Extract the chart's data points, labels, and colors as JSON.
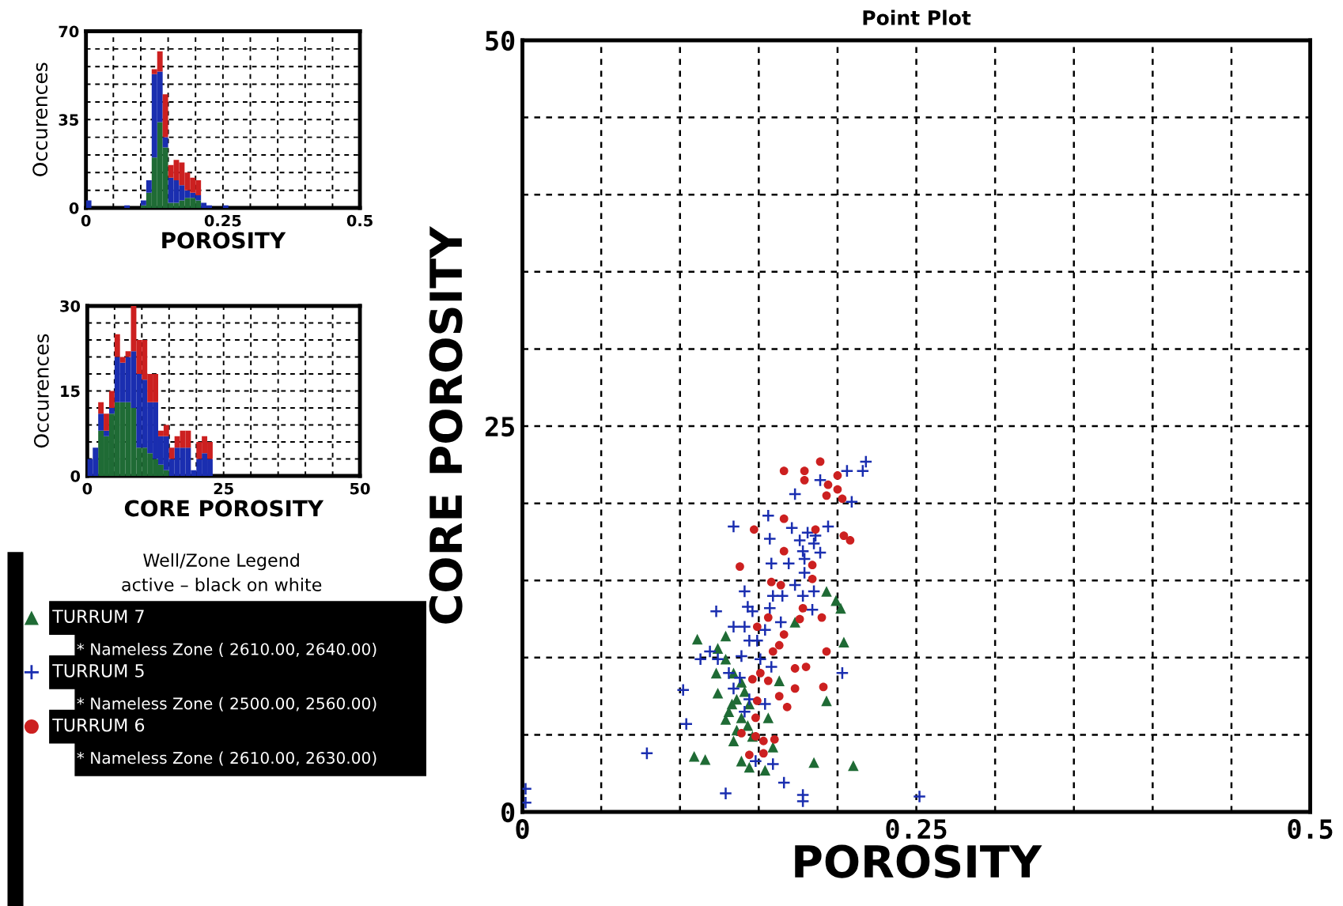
{
  "chart_data": [
    {
      "type": "bar",
      "xlabel": "POROSITY",
      "ylabel": "Occurences",
      "stacked": true,
      "grid": true,
      "x": [
        0.005,
        0.015,
        0.025,
        0.035,
        0.045,
        0.055,
        0.065,
        0.075,
        0.085,
        0.095,
        0.105,
        0.115,
        0.125,
        0.135,
        0.145,
        0.155,
        0.165,
        0.175,
        0.185,
        0.195,
        0.205,
        0.215,
        0.225,
        0.235,
        0.245,
        0.255
      ],
      "series": [
        {
          "color": "#1f6b35",
          "values": [
            0,
            0,
            0,
            0,
            0,
            0,
            0,
            0,
            0,
            0,
            1,
            6,
            20,
            34,
            24,
            2,
            2,
            3,
            4,
            4,
            3,
            0,
            0,
            0,
            0,
            0
          ]
        },
        {
          "color": "#1a2eb0",
          "values": [
            3,
            0,
            0,
            0,
            0,
            0,
            0,
            1,
            0,
            0,
            2,
            5,
            33,
            20,
            4,
            10,
            9,
            6,
            3,
            2,
            2,
            2,
            1,
            0,
            0,
            1
          ]
        },
        {
          "color": "#cc2020",
          "values": [
            0,
            0,
            0,
            0,
            0,
            0,
            0,
            0,
            0,
            0,
            0,
            0,
            2,
            8,
            17,
            5,
            8,
            9,
            7,
            6,
            6,
            0,
            0,
            0,
            0,
            0
          ]
        }
      ],
      "xlim": [
        0,
        0.5
      ],
      "ylim": [
        0,
        70
      ],
      "xticks": [
        0,
        {
          "value": 0.05,
          "label": null
        },
        {
          "value": 0.1,
          "label": null
        },
        {
          "value": 0.15,
          "label": null
        },
        {
          "value": 0.2,
          "label": null
        },
        0.25,
        {
          "value": 0.3,
          "label": null
        },
        {
          "value": 0.35,
          "label": null
        },
        {
          "value": 0.4,
          "label": null
        },
        {
          "value": 0.45,
          "label": null
        },
        0.5
      ],
      "yticks": [
        0,
        {
          "value": 7,
          "label": null
        },
        {
          "value": 14,
          "label": null
        },
        {
          "value": 21,
          "label": null
        },
        {
          "value": 28,
          "label": null
        },
        35,
        {
          "value": 42,
          "label": null
        },
        {
          "value": 49,
          "label": null
        },
        {
          "value": 56,
          "label": null
        },
        {
          "value": 63,
          "label": null
        },
        70
      ]
    },
    {
      "type": "bar",
      "xlabel": "CORE POROSITY",
      "ylabel": "Occurences",
      "stacked": true,
      "grid": true,
      "x": [
        0.5,
        1.5,
        2.5,
        3.5,
        4.5,
        5.5,
        6.5,
        7.5,
        8.5,
        9.5,
        10.5,
        11.5,
        12.5,
        13.5,
        14.5,
        15.5,
        16.5,
        17.5,
        18.5,
        19.5,
        20.5,
        21.5,
        22.5
      ],
      "series": [
        {
          "color": "#1f6b35",
          "values": [
            0,
            0,
            8,
            7,
            11,
            13,
            13,
            13,
            12,
            5,
            5,
            4,
            3,
            2,
            1,
            0,
            0,
            0,
            0,
            0,
            0,
            0,
            0
          ]
        },
        {
          "color": "#1a2eb0",
          "values": [
            3,
            5,
            3,
            1,
            1,
            8,
            7,
            8,
            10,
            13,
            12,
            9,
            10,
            5,
            6,
            3,
            5,
            5,
            5,
            1,
            3,
            4,
            3
          ]
        },
        {
          "color": "#cc2020",
          "values": [
            0,
            0,
            2,
            3,
            3,
            4,
            1,
            1,
            8,
            6,
            7,
            5,
            5,
            1,
            2,
            2,
            2,
            3,
            3,
            0,
            3,
            3,
            3
          ]
        }
      ],
      "xlim": [
        0,
        50
      ],
      "ylim": [
        0,
        30
      ],
      "xticks": [
        0,
        {
          "value": 5,
          "label": null
        },
        {
          "value": 10,
          "label": null
        },
        {
          "value": 15,
          "label": null
        },
        {
          "value": 20,
          "label": null
        },
        25,
        {
          "value": 30,
          "label": null
        },
        {
          "value": 35,
          "label": null
        },
        {
          "value": 40,
          "label": null
        },
        {
          "value": 45,
          "label": null
        },
        50
      ],
      "yticks": [
        0,
        {
          "value": 3,
          "label": null
        },
        {
          "value": 6,
          "label": null
        },
        {
          "value": 9,
          "label": null
        },
        {
          "value": 12,
          "label": null
        },
        15,
        {
          "value": 18,
          "label": null
        },
        {
          "value": 21,
          "label": null
        },
        {
          "value": 24,
          "label": null
        },
        {
          "value": 27,
          "label": null
        },
        30
      ]
    },
    {
      "type": "scatter",
      "title": "Point Plot",
      "xlabel": "POROSITY",
      "ylabel": "CORE POROSITY",
      "grid": true,
      "legend": "left",
      "legend_title": "Well/Zone Legend",
      "annotations": [
        "active – black on white",
        "* Nameless Zone ( 2610.00, 2640.00)",
        "* Nameless Zone ( 2500.00, 2560.00)",
        "* Nameless Zone ( 2610.00, 2630.00)"
      ],
      "series": [
        {
          "name": "TURRUM 7",
          "color": "#1f6b35",
          "marker": "triangle",
          "x": [
            0.193,
            0.199,
            0.202,
            0.173,
            0.204,
            0.111,
            0.129,
            0.124,
            0.123,
            0.129,
            0.124,
            0.193,
            0.163,
            0.134,
            0.139,
            0.136,
            0.131,
            0.129,
            0.139,
            0.144,
            0.136,
            0.134,
            0.143,
            0.156,
            0.109,
            0.116,
            0.139,
            0.144,
            0.154,
            0.159,
            0.185,
            0.21,
            0.146,
            0.133,
            0.141
          ],
          "values": [
            14.3,
            13.7,
            13.2,
            12.3,
            11.0,
            11.2,
            11.4,
            10.6,
            9.0,
            9.9,
            7.7,
            7.2,
            8.5,
            9.0,
            8.4,
            7.3,
            6.5,
            6.0,
            6.1,
            7.0,
            5.3,
            4.6,
            5.6,
            6.1,
            3.6,
            3.4,
            3.3,
            2.9,
            2.7,
            4.2,
            3.2,
            3.0,
            4.9,
            7.0,
            7.8
          ]
        },
        {
          "name": "TURRUM 5",
          "color": "#1a2eb0",
          "marker": "cross",
          "x": [
            0.218,
            0.216,
            0.206,
            0.189,
            0.173,
            0.209,
            0.156,
            0.134,
            0.171,
            0.181,
            0.194,
            0.186,
            0.157,
            0.176,
            0.185,
            0.178,
            0.189,
            0.179,
            0.158,
            0.169,
            0.179,
            0.185,
            0.141,
            0.173,
            0.159,
            0.165,
            0.178,
            0.123,
            0.143,
            0.146,
            0.157,
            0.184,
            0.164,
            0.134,
            0.141,
            0.154,
            0.144,
            0.149,
            0.119,
            0.113,
            0.124,
            0.139,
            0.151,
            0.158,
            0.131,
            0.138,
            0.134,
            0.102,
            0.144,
            0.154,
            0.141,
            0.104,
            0.148,
            0.159,
            0.166,
            0.129,
            0.178,
            0.178,
            0.203,
            0.079,
            0.252,
            0.002,
            0.002
          ],
          "values": [
            22.7,
            22.1,
            22.1,
            21.5,
            20.6,
            20.1,
            19.2,
            18.5,
            18.4,
            18.1,
            18.5,
            17.9,
            17.7,
            17.6,
            17.4,
            16.9,
            16.8,
            16.4,
            16.1,
            16.1,
            15.5,
            14.3,
            14.3,
            14.7,
            14.0,
            14.0,
            14.0,
            13.0,
            13.3,
            13.0,
            13.2,
            13.1,
            12.3,
            12.0,
            12.0,
            11.8,
            11.1,
            11.1,
            10.4,
            9.9,
            9.9,
            10.1,
            9.9,
            9.4,
            9.0,
            8.7,
            8.0,
            7.9,
            7.3,
            7.0,
            6.5,
            5.7,
            3.3,
            3.1,
            1.9,
            1.2,
            1.1,
            0.7,
            9.0,
            3.8,
            1.0,
            1.5,
            0.6
          ]
        },
        {
          "name": "TURRUM 6",
          "color": "#cc2020",
          "marker": "circle",
          "x": [
            0.189,
            0.166,
            0.179,
            0.179,
            0.2,
            0.194,
            0.2,
            0.193,
            0.203,
            0.166,
            0.147,
            0.186,
            0.204,
            0.208,
            0.166,
            0.138,
            0.184,
            0.184,
            0.158,
            0.164,
            0.178,
            0.176,
            0.156,
            0.149,
            0.19,
            0.166,
            0.163,
            0.159,
            0.193,
            0.173,
            0.18,
            0.151,
            0.146,
            0.156,
            0.173,
            0.191,
            0.163,
            0.168,
            0.149,
            0.148,
            0.139,
            0.148,
            0.153,
            0.16,
            0.144,
            0.153
          ],
          "values": [
            22.7,
            22.1,
            22.1,
            21.5,
            21.8,
            21.2,
            20.9,
            20.5,
            20.3,
            19.0,
            18.3,
            18.3,
            17.9,
            17.6,
            16.9,
            15.9,
            16.0,
            15.1,
            14.9,
            14.7,
            13.2,
            12.5,
            12.6,
            12.0,
            12.6,
            11.5,
            10.8,
            10.4,
            10.4,
            9.3,
            9.4,
            9.0,
            8.6,
            8.5,
            8.0,
            8.1,
            7.5,
            6.8,
            7.2,
            6.1,
            5.1,
            4.9,
            4.6,
            4.7,
            3.7,
            3.8
          ]
        }
      ],
      "xlim": [
        0,
        0.5
      ],
      "ylim": [
        0,
        50
      ],
      "xticks": [
        0,
        {
          "value": 0.05,
          "label": null
        },
        {
          "value": 0.1,
          "label": null
        },
        {
          "value": 0.15,
          "label": null
        },
        {
          "value": 0.2,
          "label": null
        },
        0.25,
        {
          "value": 0.3,
          "label": null
        },
        {
          "value": 0.35,
          "label": null
        },
        {
          "value": 0.4,
          "label": null
        },
        {
          "value": 0.45,
          "label": null
        },
        0.5
      ],
      "yticks": [
        0,
        {
          "value": 5,
          "label": null
        },
        {
          "value": 10,
          "label": null
        },
        {
          "value": 15,
          "label": null
        },
        {
          "value": 20,
          "label": null
        },
        25,
        {
          "value": 30,
          "label": null
        },
        {
          "value": 35,
          "label": null
        },
        {
          "value": 40,
          "label": null
        },
        {
          "value": 45,
          "label": null
        },
        50
      ]
    }
  ]
}
